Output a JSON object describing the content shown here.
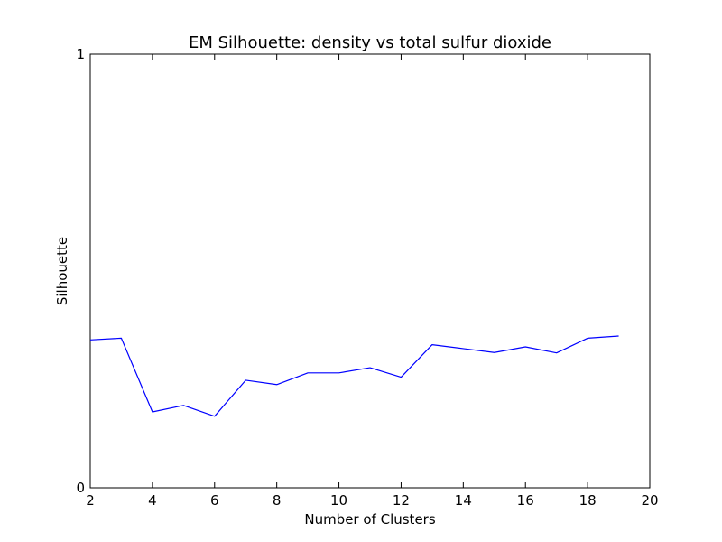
{
  "chart_data": {
    "type": "line",
    "title": "EM Silhouette: density vs total sulfur dioxide",
    "xlabel": "Number of Clusters",
    "ylabel": "Silhouette",
    "xlim": [
      2,
      20
    ],
    "ylim": [
      0,
      1
    ],
    "x_ticks": [
      "2",
      "4",
      "6",
      "8",
      "10",
      "12",
      "14",
      "16",
      "18",
      "20"
    ],
    "y_ticks": [
      "0",
      "1"
    ],
    "grid": false,
    "line_color": "#0000ff",
    "series": [
      {
        "x": [
          2,
          3,
          4,
          5,
          6,
          7,
          8,
          9,
          10,
          11,
          12,
          13,
          14,
          15,
          16,
          17,
          18,
          19
        ],
        "values": [
          0.341,
          0.345,
          0.175,
          0.19,
          0.165,
          0.248,
          0.238,
          0.265,
          0.265,
          0.277,
          0.255,
          0.33,
          0.321,
          0.312,
          0.325,
          0.311,
          0.345,
          0.35
        ]
      }
    ]
  }
}
